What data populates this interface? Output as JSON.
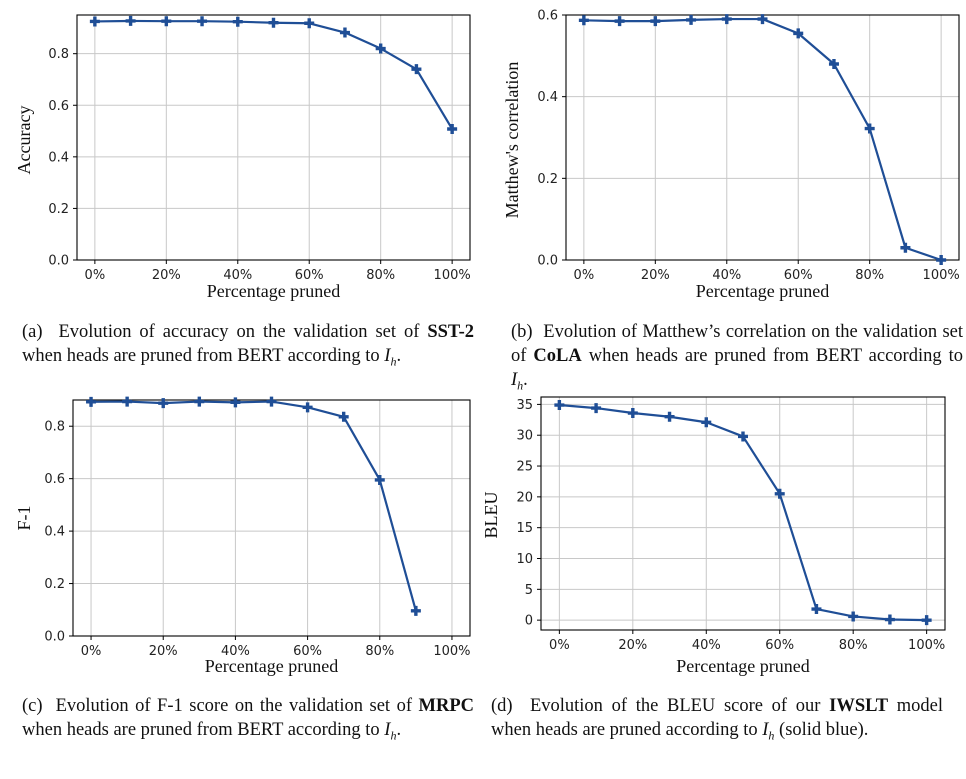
{
  "figure": {
    "charts": [
      {
        "id": "a",
        "caption": {
          "label": "(a)",
          "pre": "Evolution of accuracy on the validation set of",
          "dataset": "SST-2",
          "post": "when heads are pruned from BERT according to",
          "math": "I",
          "sub": "h",
          "tail": "."
        }
      },
      {
        "id": "b",
        "caption": {
          "label": "(b)",
          "pre": "Evolution of Matthew’s correlation on the validation set of",
          "dataset": "CoLA",
          "post": "when heads are pruned from BERT according to",
          "math": "I",
          "sub": "h",
          "tail": "."
        }
      },
      {
        "id": "c",
        "caption": {
          "label": "(c)",
          "pre": "Evolution of F-1 score on the validation set of",
          "dataset": "MRPC",
          "post": "when heads are pruned from BERT according to",
          "math": "I",
          "sub": "h",
          "tail": "."
        }
      },
      {
        "id": "d",
        "caption": {
          "label": "(d)",
          "pre": "Evolution of the BLEU score of our",
          "dataset": "IWSLT",
          "post": "model when heads are pruned according to",
          "math": "I",
          "sub": "h",
          "tail": "(solid blue)."
        }
      }
    ]
  },
  "colors": {
    "line": "#1f4e96",
    "grid": "#c8c8c8",
    "axis": "#000000"
  },
  "chart_data": [
    {
      "type": "line",
      "xlabel": "Percentage pruned",
      "ylabel": "Accuracy",
      "x": [
        0,
        10,
        20,
        30,
        40,
        50,
        60,
        70,
        80,
        90,
        100
      ],
      "xticks": [
        "0%",
        "20%",
        "40%",
        "60%",
        "80%",
        "100%"
      ],
      "xtick_values": [
        0,
        20,
        40,
        60,
        80,
        100
      ],
      "yticks": [
        "0.0",
        "0.2",
        "0.4",
        "0.6",
        "0.8"
      ],
      "ytick_values": [
        0.0,
        0.2,
        0.4,
        0.6,
        0.8
      ],
      "xlim": [
        -5,
        105
      ],
      "ylim": [
        0.0,
        0.95
      ],
      "grid": true,
      "marker": "plus",
      "series": [
        {
          "values": [
            0.925,
            0.927,
            0.926,
            0.926,
            0.924,
            0.92,
            0.918,
            0.882,
            0.82,
            0.74,
            0.508
          ]
        }
      ]
    },
    {
      "type": "line",
      "xlabel": "Percentage pruned",
      "ylabel": "Matthew's correlation",
      "x": [
        0,
        10,
        20,
        30,
        40,
        50,
        60,
        70,
        80,
        90,
        100
      ],
      "xticks": [
        "0%",
        "20%",
        "40%",
        "60%",
        "80%",
        "100%"
      ],
      "xtick_values": [
        0,
        20,
        40,
        60,
        80,
        100
      ],
      "yticks": [
        "0.0",
        "0.2",
        "0.4",
        "0.6"
      ],
      "ytick_values": [
        0.0,
        0.2,
        0.4,
        0.6
      ],
      "xlim": [
        -5,
        105
      ],
      "ylim": [
        0.0,
        0.6
      ],
      "grid": true,
      "marker": "plus",
      "series": [
        {
          "values": [
            0.587,
            0.585,
            0.585,
            0.588,
            0.59,
            0.59,
            0.555,
            0.48,
            0.322,
            0.03,
            0.0
          ]
        }
      ]
    },
    {
      "type": "line",
      "xlabel": "Percentage pruned",
      "ylabel": "F-1",
      "x": [
        0,
        10,
        20,
        30,
        40,
        50,
        60,
        70,
        80,
        90
      ],
      "xticks": [
        "0%",
        "20%",
        "40%",
        "60%",
        "80%",
        "100%"
      ],
      "xtick_values": [
        0,
        20,
        40,
        60,
        80,
        100
      ],
      "yticks": [
        "0.0",
        "0.2",
        "0.4",
        "0.6",
        "0.8"
      ],
      "ytick_values": [
        0.0,
        0.2,
        0.4,
        0.6,
        0.8
      ],
      "xlim": [
        -5,
        105
      ],
      "ylim": [
        0.0,
        0.9
      ],
      "grid": true,
      "marker": "plus",
      "series": [
        {
          "values": [
            0.893,
            0.894,
            0.888,
            0.894,
            0.891,
            0.894,
            0.872,
            0.836,
            0.595,
            0.096
          ]
        }
      ]
    },
    {
      "type": "line",
      "xlabel": "Percentage pruned",
      "ylabel": "BLEU",
      "x": [
        0,
        10,
        20,
        30,
        40,
        50,
        60,
        70,
        80,
        90,
        100
      ],
      "xticks": [
        "0%",
        "20%",
        "40%",
        "60%",
        "80%",
        "100%"
      ],
      "xtick_values": [
        0,
        20,
        40,
        60,
        80,
        100
      ],
      "yticks": [
        "0",
        "5",
        "10",
        "15",
        "20",
        "25",
        "30",
        "35"
      ],
      "ytick_values": [
        0,
        5,
        10,
        15,
        20,
        25,
        30,
        35
      ],
      "xlim": [
        -5,
        105
      ],
      "ylim": [
        -1.6,
        36.2
      ],
      "grid": true,
      "marker": "plus",
      "series": [
        {
          "values": [
            34.9,
            34.4,
            33.6,
            33.0,
            32.1,
            29.8,
            20.5,
            1.8,
            0.6,
            0.1,
            0.0
          ]
        }
      ]
    }
  ]
}
